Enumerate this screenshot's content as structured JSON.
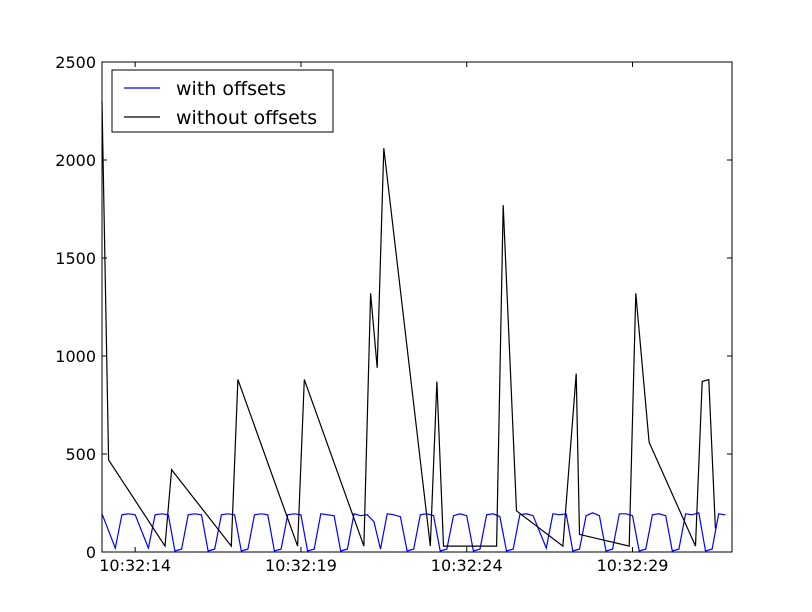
{
  "chart_data": {
    "type": "line",
    "title": "",
    "xlabel": "",
    "ylabel": "",
    "ylim": [
      0,
      2500
    ],
    "xlim": [
      "10:32:13.0",
      "10:32:32.0"
    ],
    "yticks": [
      0,
      500,
      1000,
      1500,
      2000,
      2500
    ],
    "xticks": [
      "10:32:14",
      "10:32:19",
      "10:32:24",
      "10:32:29"
    ],
    "grid": false,
    "legend_position": "top-left",
    "series": [
      {
        "name": "with offsets",
        "color": "#0000ff",
        "points": [
          [
            "10:32:13.00",
            195
          ],
          [
            "10:32:13.40",
            20
          ],
          [
            "10:32:13.60",
            190
          ],
          [
            "10:32:13.80",
            195
          ],
          [
            "10:32:14.00",
            190
          ],
          [
            "10:32:14.40",
            20
          ],
          [
            "10:32:14.60",
            190
          ],
          [
            "10:32:14.80",
            195
          ],
          [
            "10:32:15.00",
            190
          ],
          [
            "10:32:15.20",
            5
          ],
          [
            "10:32:15.40",
            15
          ],
          [
            "10:32:15.60",
            190
          ],
          [
            "10:32:15.80",
            195
          ],
          [
            "10:32:16.00",
            190
          ],
          [
            "10:32:16.20",
            5
          ],
          [
            "10:32:16.40",
            15
          ],
          [
            "10:32:16.60",
            190
          ],
          [
            "10:32:16.80",
            195
          ],
          [
            "10:32:17.00",
            190
          ],
          [
            "10:32:17.20",
            5
          ],
          [
            "10:32:17.40",
            15
          ],
          [
            "10:32:17.60",
            190
          ],
          [
            "10:32:17.80",
            195
          ],
          [
            "10:32:18.00",
            190
          ],
          [
            "10:32:18.20",
            5
          ],
          [
            "10:32:18.40",
            15
          ],
          [
            "10:32:18.60",
            190
          ],
          [
            "10:32:18.80",
            195
          ],
          [
            "10:32:19.00",
            190
          ],
          [
            "10:32:19.20",
            5
          ],
          [
            "10:32:19.40",
            15
          ],
          [
            "10:32:19.60",
            195
          ],
          [
            "10:32:19.80",
            190
          ],
          [
            "10:32:20.00",
            185
          ],
          [
            "10:32:20.20",
            5
          ],
          [
            "10:32:20.40",
            15
          ],
          [
            "10:32:20.60",
            195
          ],
          [
            "10:32:20.80",
            185
          ],
          [
            "10:32:21.00",
            190
          ],
          [
            "10:32:21.20",
            155
          ],
          [
            "10:32:21.40",
            15
          ],
          [
            "10:32:21.60",
            195
          ],
          [
            "10:32:21.80",
            190
          ],
          [
            "10:32:22.00",
            180
          ],
          [
            "10:32:22.20",
            5
          ],
          [
            "10:32:22.40",
            15
          ],
          [
            "10:32:22.60",
            190
          ],
          [
            "10:32:22.80",
            195
          ],
          [
            "10:32:23.00",
            185
          ],
          [
            "10:32:23.20",
            5
          ],
          [
            "10:32:23.40",
            15
          ],
          [
            "10:32:23.60",
            185
          ],
          [
            "10:32:23.80",
            195
          ],
          [
            "10:32:24.00",
            185
          ],
          [
            "10:32:24.20",
            5
          ],
          [
            "10:32:24.40",
            15
          ],
          [
            "10:32:24.60",
            190
          ],
          [
            "10:32:24.80",
            195
          ],
          [
            "10:32:25.00",
            180
          ],
          [
            "10:32:25.20",
            5
          ],
          [
            "10:32:25.40",
            15
          ],
          [
            "10:32:25.60",
            190
          ],
          [
            "10:32:25.80",
            195
          ],
          [
            "10:32:26.00",
            185
          ],
          [
            "10:32:26.40",
            20
          ],
          [
            "10:32:26.60",
            195
          ],
          [
            "10:32:26.80",
            190
          ],
          [
            "10:32:27.00",
            195
          ],
          [
            "10:32:27.20",
            5
          ],
          [
            "10:32:27.40",
            15
          ],
          [
            "10:32:27.60",
            185
          ],
          [
            "10:32:27.80",
            200
          ],
          [
            "10:32:28.00",
            185
          ],
          [
            "10:32:28.20",
            5
          ],
          [
            "10:32:28.40",
            15
          ],
          [
            "10:32:28.60",
            195
          ],
          [
            "10:32:28.80",
            195
          ],
          [
            "10:32:29.00",
            185
          ],
          [
            "10:32:29.20",
            5
          ],
          [
            "10:32:29.40",
            15
          ],
          [
            "10:32:29.60",
            190
          ],
          [
            "10:32:29.80",
            195
          ],
          [
            "10:32:30.00",
            185
          ],
          [
            "10:32:30.20",
            5
          ],
          [
            "10:32:30.40",
            15
          ],
          [
            "10:32:30.60",
            195
          ],
          [
            "10:32:30.80",
            190
          ],
          [
            "10:32:31.00",
            200
          ],
          [
            "10:32:31.20",
            5
          ],
          [
            "10:32:31.40",
            15
          ],
          [
            "10:32:31.60",
            195
          ],
          [
            "10:32:31.80",
            190
          ]
        ]
      },
      {
        "name": "without offsets",
        "color": "#000000",
        "points": [
          [
            "10:32:13.00",
            2300
          ],
          [
            "10:32:13.20",
            470
          ],
          [
            "10:32:14.90",
            30
          ],
          [
            "10:32:15.10",
            420
          ],
          [
            "10:32:16.90",
            30
          ],
          [
            "10:32:17.10",
            880
          ],
          [
            "10:32:18.90",
            30
          ],
          [
            "10:32:19.10",
            880
          ],
          [
            "10:32:20.90",
            30
          ],
          [
            "10:32:21.10",
            1320
          ],
          [
            "10:32:21.30",
            940
          ],
          [
            "10:32:21.50",
            2060
          ],
          [
            "10:32:22.90",
            30
          ],
          [
            "10:32:23.10",
            870
          ],
          [
            "10:32:23.30",
            30
          ],
          [
            "10:32:24.90",
            30
          ],
          [
            "10:32:25.10",
            1770
          ],
          [
            "10:32:25.50",
            210
          ],
          [
            "10:32:26.90",
            30
          ],
          [
            "10:32:27.30",
            910
          ],
          [
            "10:32:27.40",
            90
          ],
          [
            "10:32:28.90",
            30
          ],
          [
            "10:32:29.10",
            1320
          ],
          [
            "10:32:29.50",
            560
          ],
          [
            "10:32:30.90",
            30
          ],
          [
            "10:32:31.10",
            870
          ],
          [
            "10:32:31.30",
            880
          ],
          [
            "10:32:31.50",
            120
          ]
        ]
      }
    ]
  }
}
